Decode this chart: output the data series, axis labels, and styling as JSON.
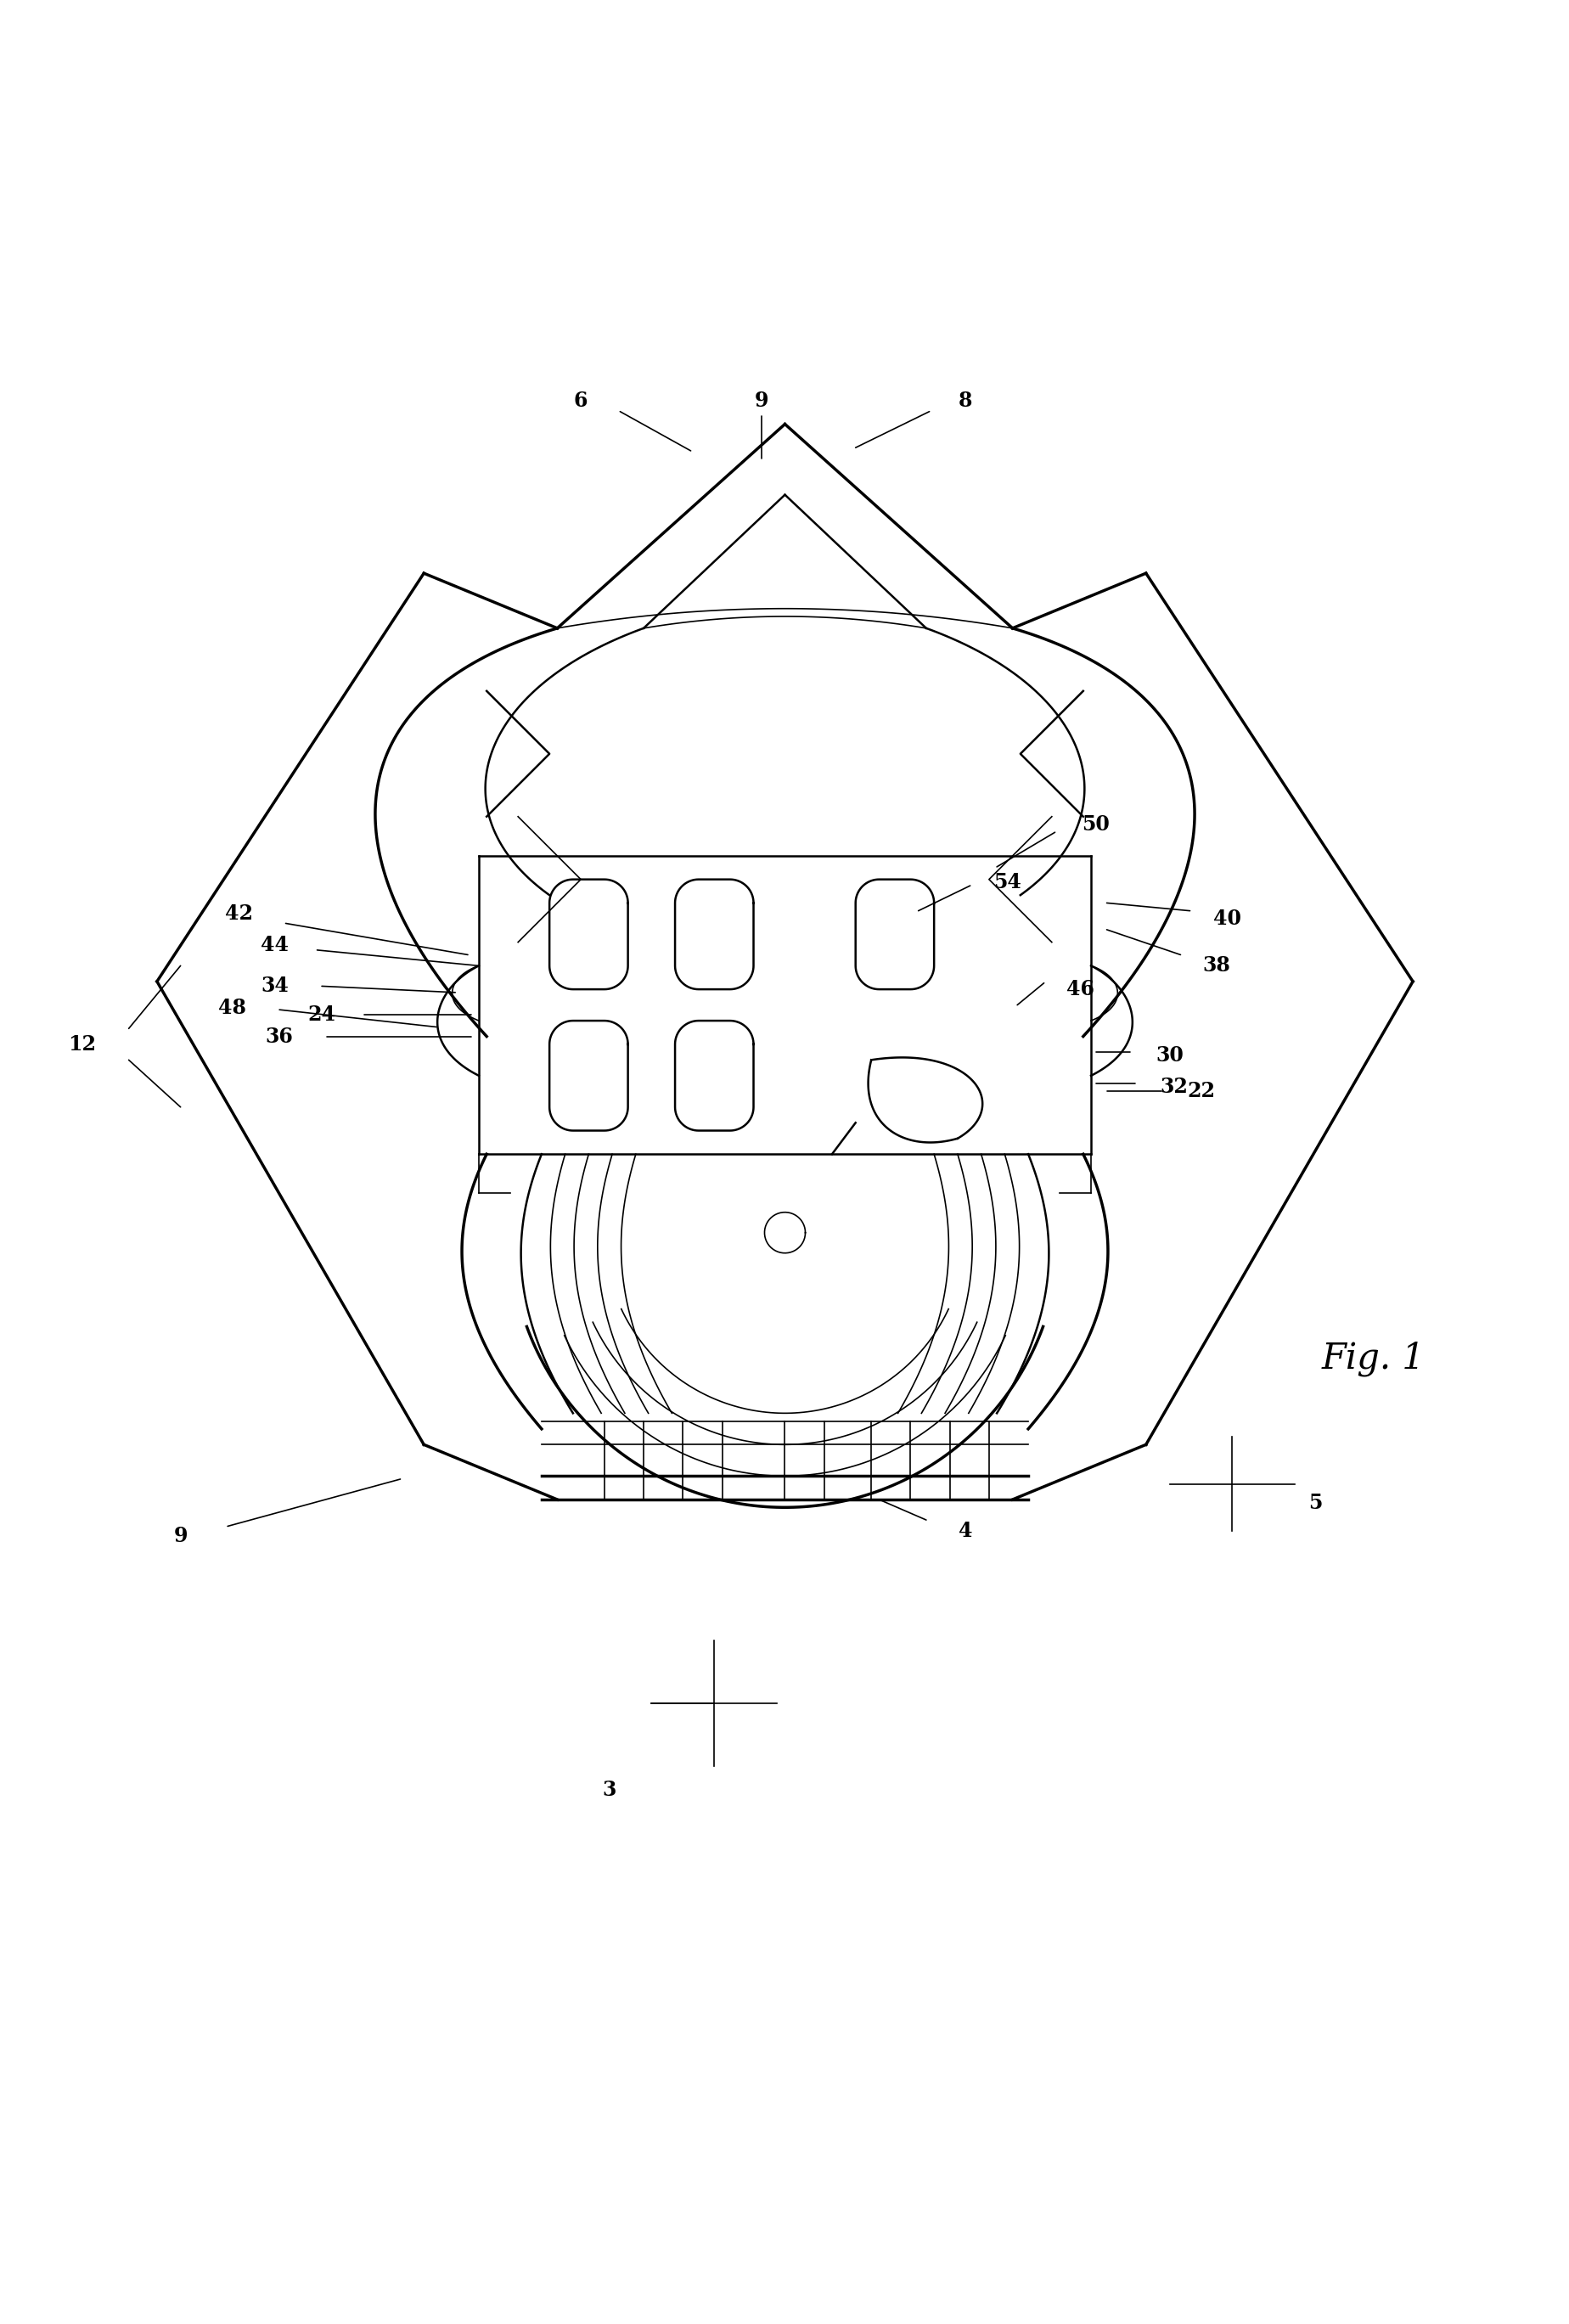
{
  "title": "Fig. 1",
  "background_color": "#ffffff",
  "line_color": "#000000",
  "lw_thick": 2.5,
  "lw_med": 1.8,
  "lw_thin": 1.2
}
